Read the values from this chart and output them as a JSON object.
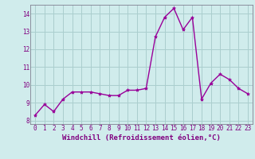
{
  "x": [
    0,
    1,
    2,
    3,
    4,
    5,
    6,
    7,
    8,
    9,
    10,
    11,
    12,
    13,
    14,
    15,
    16,
    17,
    18,
    19,
    20,
    21,
    22,
    23
  ],
  "y": [
    8.3,
    8.9,
    8.5,
    9.2,
    9.6,
    9.6,
    9.6,
    9.5,
    9.4,
    9.4,
    9.7,
    9.7,
    9.8,
    12.7,
    13.8,
    14.3,
    13.1,
    13.8,
    9.2,
    10.1,
    10.6,
    10.3,
    9.8,
    9.5
  ],
  "line_color": "#990099",
  "marker": "*",
  "marker_size": 3,
  "xlabel": "Windchill (Refroidissement éolien,°C)",
  "ylim": [
    7.8,
    14.5
  ],
  "xlim": [
    -0.5,
    23.5
  ],
  "yticks": [
    8,
    9,
    10,
    11,
    12,
    13,
    14
  ],
  "xticks": [
    0,
    1,
    2,
    3,
    4,
    5,
    6,
    7,
    8,
    9,
    10,
    11,
    12,
    13,
    14,
    15,
    16,
    17,
    18,
    19,
    20,
    21,
    22,
    23
  ],
  "grid_color": "#aacece",
  "background_color": "#d0ecec",
  "label_color": "#800080",
  "tick_fontsize": 5.5,
  "xlabel_fontsize": 6.5,
  "linewidth": 1.0
}
